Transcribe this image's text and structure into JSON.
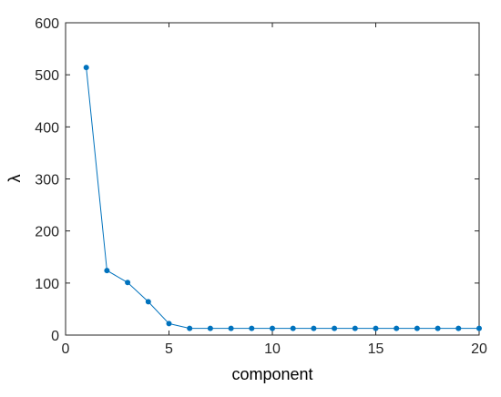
{
  "chart_data": {
    "type": "line",
    "x_label": "component",
    "y_label": "λ",
    "x": [
      1,
      2,
      3,
      4,
      5,
      6,
      7,
      8,
      9,
      10,
      11,
      12,
      13,
      14,
      15,
      16,
      17,
      18,
      19,
      20
    ],
    "series": [
      {
        "color": "#0072bd",
        "values": [
          514,
          124,
          101,
          64,
          22,
          13,
          13,
          13,
          13,
          13,
          13,
          13,
          13,
          13,
          13,
          13,
          13,
          13,
          13,
          13
        ]
      }
    ],
    "xlim": [
      0,
      20
    ],
    "ylim": [
      0,
      600
    ],
    "xticks": [
      0,
      5,
      10,
      15,
      20
    ],
    "yticks": [
      0,
      100,
      200,
      300,
      400,
      500,
      600
    ]
  }
}
